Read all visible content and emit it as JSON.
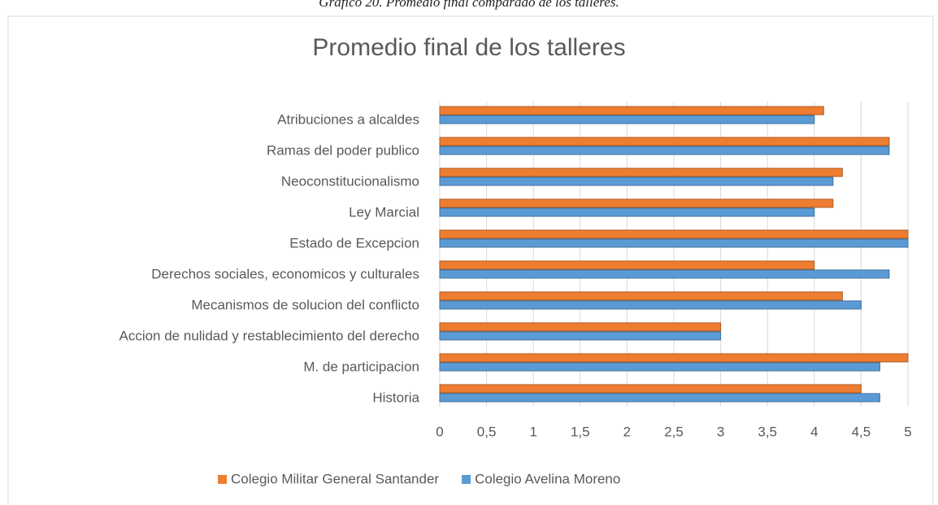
{
  "caption": "Gráfico 20. Promedio final comparado de los talleres.",
  "chart_data": {
    "type": "hbar",
    "title": "Promedio final de los talleres",
    "categories": [
      "Atribuciones a alcaldes",
      "Ramas del poder publico",
      "Neoconstitucionalismo",
      "Ley Marcial",
      "Estado de Excepcion",
      "Derechos sociales, economicos y culturales",
      "Mecanismos de solucion del conflicto",
      "Accion de nulidad y restablecimiento del derecho",
      "M. de participacion",
      "Historia"
    ],
    "series": [
      {
        "name": "Colegio Militar General Santander",
        "color": "#ed7d31",
        "values": [
          4.1,
          4.8,
          4.3,
          4.2,
          5,
          4,
          4.3,
          3,
          5,
          4.5
        ]
      },
      {
        "name": "Colegio Avelina Moreno",
        "color": "#5b9bd5",
        "values": [
          4,
          4.8,
          4.2,
          4,
          5,
          4.8,
          4.5,
          3,
          4.7,
          4.7
        ]
      }
    ],
    "xlim": [
      0,
      5
    ],
    "xticks": [
      0,
      {
        "value": 0.5,
        "label": "0,5"
      },
      1,
      {
        "value": 1.5,
        "label": "1,5"
      },
      2,
      {
        "value": 2.5,
        "label": "2,5"
      },
      3,
      {
        "value": 3.5,
        "label": "3,5"
      },
      4,
      {
        "value": 4.5,
        "label": "4,5"
      },
      5
    ],
    "grid": true,
    "legend": "bottom"
  }
}
